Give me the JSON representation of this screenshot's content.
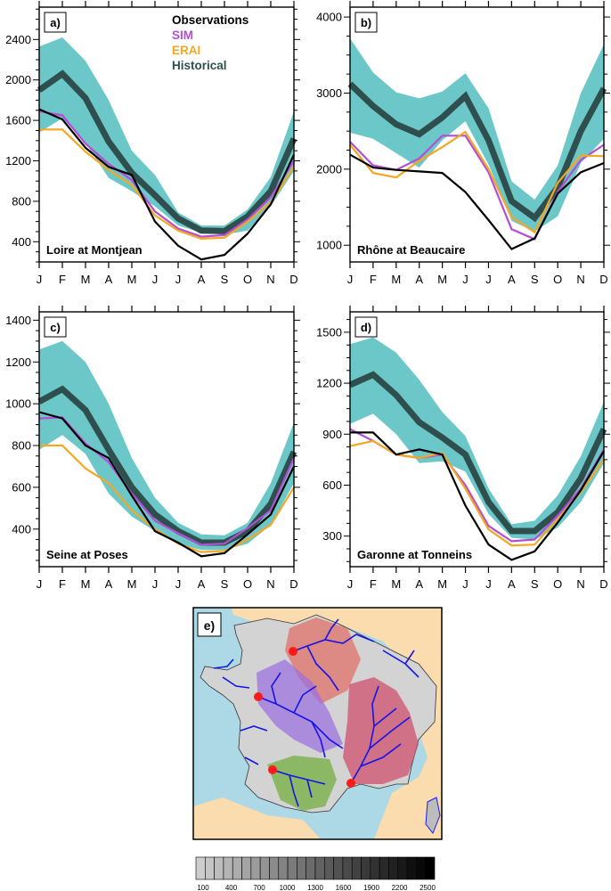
{
  "colors": {
    "observations": "#000000",
    "sim": "#b44ed6",
    "erai": "#f5a623",
    "historical": "#2f4f4f",
    "spread": "#6cc8c8"
  },
  "legend": {
    "observations": "Observations",
    "sim": "SIM",
    "erai": "ERAI",
    "historical": "Historical"
  },
  "chart_data": [
    {
      "type": "line",
      "panel_label": "a)",
      "title": "Loire at Montjean",
      "categories": [
        "J",
        "F",
        "M",
        "A",
        "M",
        "J",
        "J",
        "A",
        "S",
        "O",
        "N",
        "D"
      ],
      "yticks": [
        400,
        800,
        1200,
        1600,
        2000,
        2400
      ],
      "ylim": [
        200,
        2720
      ],
      "series": [
        {
          "name": "Observations",
          "values": [
            1710,
            1610,
            1330,
            1140,
            1060,
            600,
            360,
            225,
            270,
            480,
            770,
            1260
          ]
        },
        {
          "name": "SIM",
          "values": [
            1690,
            1650,
            1370,
            1170,
            1010,
            700,
            530,
            450,
            465,
            620,
            840,
            1200
          ]
        },
        {
          "name": "ERAI",
          "values": [
            1510,
            1510,
            1290,
            1110,
            960,
            660,
            510,
            430,
            440,
            600,
            790,
            1140
          ]
        },
        {
          "name": "Historical",
          "values": [
            1900,
            2060,
            1820,
            1390,
            1080,
            860,
            630,
            510,
            505,
            650,
            900,
            1420
          ]
        },
        {
          "name": "Historical range",
          "lower": [
            1480,
            1620,
            1380,
            1030,
            900,
            750,
            560,
            490,
            470,
            510,
            750,
            1100
          ],
          "upper": [
            2330,
            2420,
            2190,
            1800,
            1300,
            1060,
            690,
            560,
            560,
            720,
            1040,
            1690
          ]
        }
      ]
    },
    {
      "type": "line",
      "panel_label": "b)",
      "title": "Rhône at Beaucaire",
      "categories": [
        "J",
        "F",
        "M",
        "A",
        "M",
        "J",
        "J",
        "A",
        "S",
        "O",
        "N",
        "D"
      ],
      "yticks": [
        1000,
        2000,
        3000,
        4000
      ],
      "ylim": [
        780,
        4130
      ],
      "series": [
        {
          "name": "Observations",
          "values": [
            2190,
            2020,
            1990,
            1970,
            1950,
            1700,
            1330,
            950,
            1090,
            1680,
            1960,
            2080
          ]
        },
        {
          "name": "SIM",
          "values": [
            2360,
            2050,
            1990,
            2140,
            2440,
            2440,
            1960,
            1210,
            1080,
            1700,
            2120,
            2320
          ]
        },
        {
          "name": "ERAI",
          "values": [
            2320,
            1950,
            1890,
            2110,
            2290,
            2490,
            2000,
            1370,
            1170,
            1820,
            2180,
            2170
          ]
        },
        {
          "name": "Historical",
          "values": [
            3120,
            2830,
            2590,
            2460,
            2680,
            2960,
            2380,
            1580,
            1360,
            1760,
            2500,
            3060
          ]
        },
        {
          "name": "Historical range",
          "lower": [
            2480,
            2400,
            2210,
            2020,
            2380,
            2630,
            2060,
            1320,
            1180,
            1380,
            2080,
            2400
          ],
          "upper": [
            3720,
            3270,
            3010,
            2930,
            3020,
            3260,
            2800,
            1840,
            1600,
            2050,
            3000,
            3640
          ]
        }
      ]
    },
    {
      "type": "line",
      "panel_label": "c)",
      "title": "Seine at Poses",
      "categories": [
        "J",
        "F",
        "M",
        "A",
        "M",
        "J",
        "J",
        "A",
        "S",
        "O",
        "N",
        "D"
      ],
      "yticks": [
        400,
        600,
        800,
        1000,
        1200,
        1400
      ],
      "ylim": [
        220,
        1440
      ],
      "series": [
        {
          "name": "Observations",
          "values": [
            960,
            930,
            800,
            740,
            560,
            390,
            335,
            270,
            285,
            375,
            470,
            700
          ]
        },
        {
          "name": "SIM",
          "values": [
            930,
            935,
            810,
            720,
            570,
            440,
            380,
            325,
            330,
            405,
            490,
            740
          ]
        },
        {
          "name": "ERAI",
          "values": [
            800,
            800,
            690,
            620,
            490,
            400,
            330,
            290,
            295,
            350,
            420,
            600
          ]
        },
        {
          "name": "Historical",
          "values": [
            1010,
            1070,
            970,
            780,
            600,
            470,
            390,
            335,
            335,
            390,
            520,
            770
          ]
        },
        {
          "name": "Historical range",
          "lower": [
            780,
            850,
            760,
            570,
            460,
            390,
            330,
            300,
            300,
            330,
            420,
            620
          ],
          "upper": [
            1260,
            1300,
            1200,
            1000,
            740,
            550,
            430,
            375,
            370,
            430,
            620,
            910
          ]
        }
      ]
    },
    {
      "type": "line",
      "panel_label": "d)",
      "title": "Garonne at Tonneins",
      "categories": [
        "J",
        "F",
        "M",
        "A",
        "M",
        "J",
        "J",
        "A",
        "S",
        "O",
        "N",
        "D"
      ],
      "yticks": [
        300,
        600,
        900,
        1200,
        1500
      ],
      "ylim": [
        120,
        1620
      ],
      "series": [
        {
          "name": "Observations",
          "values": [
            910,
            910,
            780,
            810,
            780,
            480,
            250,
            160,
            210,
            380,
            570,
            800
          ]
        },
        {
          "name": "SIM",
          "values": [
            930,
            860,
            780,
            760,
            780,
            600,
            360,
            270,
            280,
            420,
            580,
            810
          ]
        },
        {
          "name": "ERAI",
          "values": [
            830,
            860,
            780,
            760,
            790,
            580,
            340,
            245,
            250,
            400,
            560,
            750
          ]
        },
        {
          "name": "Historical",
          "values": [
            1190,
            1250,
            1130,
            970,
            880,
            780,
            500,
            330,
            330,
            440,
            640,
            930
          ]
        },
        {
          "name": "Historical range",
          "lower": [
            960,
            1020,
            900,
            730,
            740,
            680,
            430,
            290,
            280,
            350,
            500,
            730
          ],
          "upper": [
            1430,
            1470,
            1380,
            1220,
            1030,
            890,
            580,
            370,
            390,
            540,
            770,
            1090
          ]
        }
      ]
    }
  ],
  "map": {
    "panel_label": "e)",
    "gauges": [
      "Seine at Poses",
      "Loire at Montjean",
      "Garonne at Tonneins",
      "Rhône at Beaucaire"
    ],
    "basin_colors": {
      "seine": "#e0706a",
      "loire": "#9a6ee0",
      "garonne": "#7ab04a",
      "rhone": "#d0506e"
    }
  },
  "colorbar": {
    "tick_labels": [
      "100",
      "400",
      "700",
      "1000",
      "1300",
      "1600",
      "1900",
      "2200",
      "2500"
    ],
    "n_bins": 26
  }
}
